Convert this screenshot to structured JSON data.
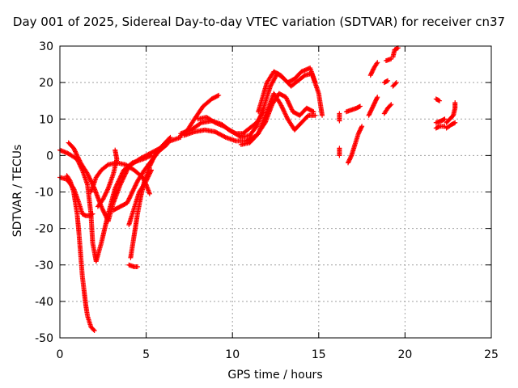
{
  "chart_data": {
    "type": "scatter",
    "title": "Day 001 of 2025, Sidereal Day-to-day VTEC variation (SDTVAR) for receiver cn37",
    "xlabel": "GPS time / hours",
    "ylabel": "SDTVAR / TECUs",
    "xlim": [
      0,
      25
    ],
    "ylim": [
      -50,
      30
    ],
    "xticks": [
      "0",
      "5",
      "10",
      "15",
      "20",
      "25"
    ],
    "yticks": [
      "30",
      "20",
      "10",
      "0",
      "-10",
      "-20",
      "-30",
      "-40",
      "-50"
    ],
    "grid": true,
    "legend": "none",
    "marker": "+",
    "color": "#ff0000",
    "tracks": [
      [
        [
          0.0,
          1.5
        ],
        [
          0.5,
          0.5
        ],
        [
          1.0,
          -1.0
        ],
        [
          1.3,
          -4
        ],
        [
          1.6,
          -8
        ],
        [
          1.8,
          -16
        ],
        [
          1.9,
          -24
        ],
        [
          2.1,
          -29
        ],
        [
          2.4,
          -24
        ],
        [
          2.8,
          -16
        ],
        [
          3.2,
          -9
        ],
        [
          3.7,
          -4
        ],
        [
          4.2,
          -2
        ],
        [
          4.8,
          -1
        ],
        [
          5.3,
          0
        ]
      ],
      [
        [
          0.0,
          -6
        ],
        [
          0.4,
          -6.5
        ],
        [
          0.8,
          -9
        ],
        [
          1.1,
          -13
        ],
        [
          1.3,
          -16
        ],
        [
          1.5,
          -16.5
        ],
        [
          1.7,
          -16.5
        ],
        [
          1.9,
          -16
        ]
      ],
      [
        [
          0.4,
          -5.5
        ],
        [
          0.6,
          -7
        ],
        [
          0.8,
          -10
        ],
        [
          1.0,
          -16
        ],
        [
          1.1,
          -21
        ],
        [
          1.2,
          -27
        ],
        [
          1.3,
          -33
        ],
        [
          1.4,
          -37
        ],
        [
          1.5,
          -41
        ],
        [
          1.6,
          -44
        ],
        [
          1.8,
          -47
        ],
        [
          2.0,
          -48
        ]
      ],
      [
        [
          0.5,
          3.5
        ],
        [
          0.8,
          2
        ],
        [
          1.2,
          -2
        ],
        [
          1.6,
          -5
        ],
        [
          2.0,
          -9
        ],
        [
          2.4,
          -14
        ],
        [
          2.8,
          -18
        ],
        [
          3.1,
          -13
        ],
        [
          3.5,
          -8
        ],
        [
          4.0,
          -3
        ],
        [
          4.6,
          -1
        ],
        [
          5.2,
          0.5
        ],
        [
          5.8,
          2
        ],
        [
          6.4,
          4
        ],
        [
          7.0,
          5
        ]
      ],
      [
        [
          1.8,
          -10
        ],
        [
          2.1,
          -6
        ],
        [
          2.4,
          -4
        ],
        [
          2.8,
          -2.5
        ],
        [
          3.3,
          -2
        ],
        [
          3.8,
          -2.5
        ],
        [
          4.3,
          -4
        ],
        [
          4.8,
          -6
        ],
        [
          5.0,
          -8
        ],
        [
          5.2,
          -10.5
        ]
      ],
      [
        [
          2.2,
          -14
        ],
        [
          2.5,
          -12
        ],
        [
          2.8,
          -9
        ],
        [
          3.1,
          -5
        ],
        [
          3.3,
          -1
        ],
        [
          3.2,
          1.5
        ]
      ],
      [
        [
          3.1,
          -15
        ],
        [
          3.5,
          -14
        ],
        [
          3.9,
          -13
        ],
        [
          4.2,
          -10
        ],
        [
          4.5,
          -7
        ],
        [
          4.9,
          -4
        ],
        [
          5.3,
          -1.5
        ],
        [
          5.7,
          1
        ],
        [
          6.2,
          3
        ]
      ],
      [
        [
          4.1,
          -28
        ],
        [
          4.3,
          -22
        ],
        [
          4.5,
          -16
        ],
        [
          4.7,
          -11
        ],
        [
          4.9,
          -7
        ],
        [
          5.2,
          -3
        ],
        [
          5.6,
          1
        ],
        [
          6.0,
          3
        ],
        [
          6.4,
          5
        ]
      ],
      [
        [
          4.0,
          -19
        ],
        [
          4.2,
          -16
        ],
        [
          4.4,
          -13
        ],
        [
          4.6,
          -10
        ],
        [
          5.0,
          -7
        ],
        [
          5.3,
          -4
        ]
      ],
      [
        [
          4.0,
          -30
        ],
        [
          4.3,
          -30.5
        ],
        [
          4.5,
          -30.5
        ]
      ],
      [
        [
          7.0,
          5.5
        ],
        [
          7.4,
          7
        ],
        [
          7.8,
          10
        ],
        [
          8.3,
          13.5
        ],
        [
          8.8,
          15.5
        ],
        [
          9.2,
          16.5
        ]
      ],
      [
        [
          7.0,
          6
        ],
        [
          7.6,
          7
        ],
        [
          8.2,
          9
        ],
        [
          8.8,
          9.5
        ],
        [
          9.4,
          8.5
        ],
        [
          9.8,
          7
        ],
        [
          10.2,
          6
        ],
        [
          10.6,
          6
        ],
        [
          11.0,
          7.5
        ],
        [
          11.4,
          9
        ],
        [
          11.8,
          12
        ]
      ],
      [
        [
          7.2,
          5.5
        ],
        [
          7.8,
          6.5
        ],
        [
          8.4,
          7
        ],
        [
          9.0,
          6.5
        ],
        [
          9.6,
          5
        ],
        [
          10.2,
          4
        ],
        [
          10.8,
          4
        ],
        [
          11.4,
          5.5
        ],
        [
          11.9,
          9
        ],
        [
          12.3,
          14
        ],
        [
          12.7,
          17
        ],
        [
          13.1,
          16
        ],
        [
          13.5,
          12
        ],
        [
          13.9,
          11
        ],
        [
          14.3,
          13
        ],
        [
          14.7,
          12
        ]
      ],
      [
        [
          8.0,
          10
        ],
        [
          8.5,
          10.5
        ],
        [
          9.0,
          9
        ],
        [
          9.5,
          8
        ],
        [
          10.0,
          6.5
        ],
        [
          10.5,
          5
        ],
        [
          11.0,
          5.5
        ],
        [
          11.4,
          8
        ],
        [
          11.8,
          13
        ],
        [
          12.2,
          19
        ],
        [
          12.6,
          22.5
        ],
        [
          13.0,
          21
        ],
        [
          13.4,
          19
        ],
        [
          13.8,
          20.5
        ],
        [
          14.2,
          22
        ],
        [
          14.6,
          22.5
        ],
        [
          15.0,
          17
        ],
        [
          15.2,
          11
        ]
      ],
      [
        [
          10.5,
          3
        ],
        [
          11.0,
          3.5
        ],
        [
          11.5,
          6
        ],
        [
          12.0,
          12
        ],
        [
          12.4,
          17
        ],
        [
          12.8,
          14
        ],
        [
          13.2,
          10
        ],
        [
          13.6,
          7
        ],
        [
          14.0,
          9
        ],
        [
          14.4,
          11
        ],
        [
          14.8,
          11
        ]
      ],
      [
        [
          11.5,
          12
        ],
        [
          12.0,
          20
        ],
        [
          12.4,
          23
        ],
        [
          12.8,
          22
        ],
        [
          13.2,
          20
        ],
        [
          13.6,
          21
        ],
        [
          14.0,
          23
        ],
        [
          14.5,
          24
        ],
        [
          14.8,
          20
        ]
      ],
      [
        [
          16.2,
          9.5
        ],
        [
          16.2,
          11.5
        ]
      ],
      [
        [
          16.2,
          0
        ],
        [
          16.2,
          2
        ]
      ],
      [
        [
          16.7,
          -2
        ],
        [
          16.9,
          0
        ],
        [
          17.1,
          3
        ],
        [
          17.3,
          6
        ],
        [
          17.5,
          8
        ]
      ],
      [
        [
          16.6,
          12
        ],
        [
          16.9,
          12.5
        ],
        [
          17.2,
          13
        ],
        [
          17.4,
          13.5
        ]
      ],
      [
        [
          18.0,
          22
        ],
        [
          18.2,
          24
        ],
        [
          18.4,
          25.5
        ]
      ],
      [
        [
          17.9,
          11
        ],
        [
          18.1,
          13
        ],
        [
          18.3,
          15
        ],
        [
          18.4,
          16
        ]
      ],
      [
        [
          18.8,
          11.5
        ],
        [
          19.0,
          13
        ],
        [
          19.2,
          14
        ]
      ],
      [
        [
          18.8,
          20
        ],
        [
          19.0,
          20.5
        ]
      ],
      [
        [
          18.9,
          26
        ],
        [
          19.2,
          26.5
        ]
      ],
      [
        [
          19.3,
          19
        ],
        [
          19.5,
          20
        ]
      ],
      [
        [
          19.3,
          27
        ],
        [
          19.4,
          29
        ],
        [
          19.6,
          29.5
        ]
      ],
      [
        [
          21.8,
          15.5
        ],
        [
          22.0,
          15
        ]
      ],
      [
        [
          21.8,
          9
        ],
        [
          22.1,
          9.5
        ],
        [
          22.3,
          10
        ]
      ],
      [
        [
          21.8,
          7.5
        ],
        [
          22.0,
          8
        ],
        [
          22.3,
          8
        ]
      ],
      [
        [
          22.4,
          9
        ],
        [
          22.6,
          10
        ],
        [
          22.8,
          11
        ],
        [
          22.9,
          13
        ],
        [
          22.9,
          14.5
        ]
      ],
      [
        [
          22.4,
          7.5
        ],
        [
          22.7,
          8.5
        ],
        [
          22.9,
          9
        ]
      ]
    ]
  }
}
